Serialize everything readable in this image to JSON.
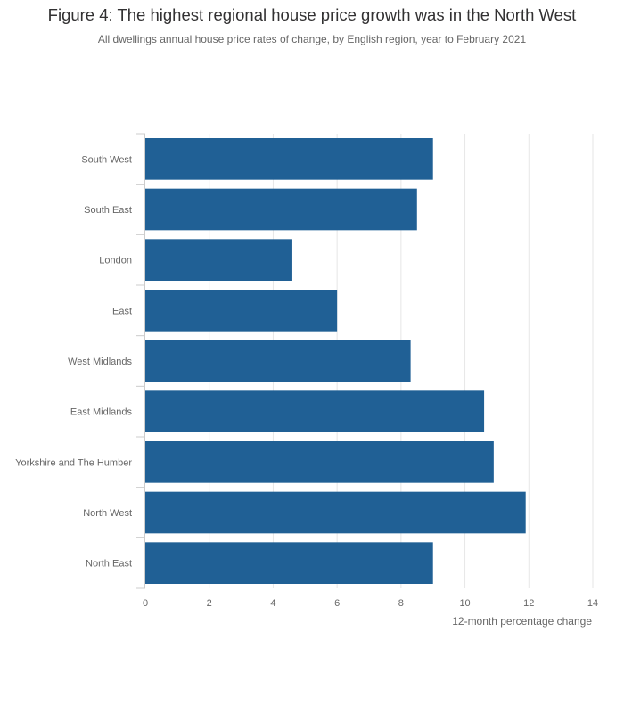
{
  "title": "Figure 4: The highest regional house price growth was in the North West",
  "subtitle": "All dwellings annual house price rates of change, by English region, year to February 2021",
  "colors": {
    "bar": "#206095",
    "grid": "#e6e6e6",
    "axis": "#cccccc",
    "text": "#666666"
  },
  "chart_data": {
    "type": "bar",
    "orientation": "horizontal",
    "categories": [
      "South West",
      "South East",
      "London",
      "East",
      "West Midlands",
      "East Midlands",
      "Yorkshire and The Humber",
      "North West",
      "North East"
    ],
    "values": [
      9.0,
      8.5,
      4.6,
      6.0,
      8.3,
      10.6,
      10.9,
      11.9,
      9.0
    ],
    "xlabel": "12-month percentage change",
    "ylabel": "",
    "xlim": [
      0,
      14
    ],
    "xticks": [
      0,
      2,
      4,
      6,
      8,
      10,
      12,
      14
    ],
    "grid": true,
    "legend": "none"
  }
}
